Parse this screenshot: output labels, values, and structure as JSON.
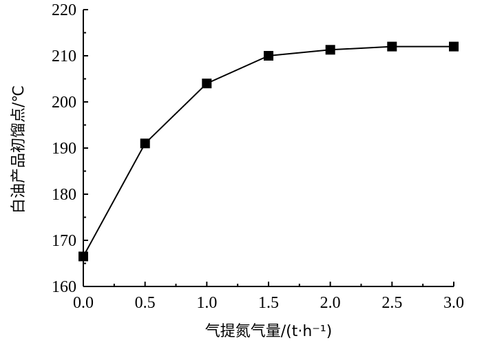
{
  "chart_data": {
    "type": "line",
    "title": "",
    "xlabel": "气提氮气量/(t·h⁻¹)",
    "ylabel": "白油产品初馏点/℃",
    "xlim": [
      0,
      3.0
    ],
    "ylim": [
      160,
      220
    ],
    "x_ticks": [
      "0.0",
      "0.5",
      "1.0",
      "1.5",
      "2.0",
      "2.5",
      "3.0"
    ],
    "y_ticks": [
      "160",
      "170",
      "180",
      "190",
      "200",
      "210",
      "220"
    ],
    "grid": false,
    "marker": "square",
    "colors": {
      "series": "#000000",
      "axis": "#000000"
    },
    "series": [
      {
        "x": [
          0.0,
          0.5,
          1.0,
          1.5,
          2.0,
          2.5,
          3.0
        ],
        "values": [
          166.5,
          191,
          204,
          210,
          211.3,
          212,
          212
        ]
      }
    ]
  }
}
